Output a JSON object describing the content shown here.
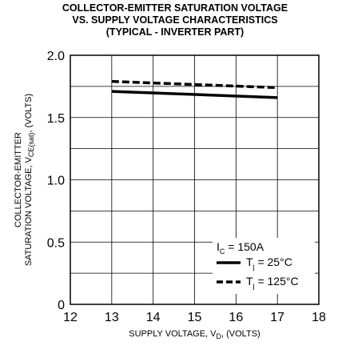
{
  "chart_data": {
    "type": "line",
    "title_lines": [
      "COLLECTOR-EMITTER SATURATION VOLTAGE",
      "VS. SUPPLY VOLTAGE CHARACTERISTICS",
      "(TYPICAL - INVERTER PART)"
    ],
    "xlabel": {
      "main": "SUPPLY VOLTAGE, V",
      "sub": "D",
      "tail": ", (VOLTS)"
    },
    "ylabel": {
      "line1": "COLLECTOR-EMITTER",
      "line2_main": "SATURATION VOLTAGE, V",
      "line2_sub": "CE(sat)",
      "line2_tail": ", (VOLTS)"
    },
    "xlim": [
      12,
      18
    ],
    "ylim": [
      0,
      2.0
    ],
    "x_ticks": [
      "12",
      "13",
      "14",
      "15",
      "16",
      "17",
      "18"
    ],
    "y_ticks": [
      "0",
      "0.5",
      "1.0",
      "1.5",
      "2.0"
    ],
    "grid": true,
    "legend_header": {
      "main": "I",
      "sub": "C",
      "tail": " = 150A"
    },
    "series": [
      {
        "name_main": "T",
        "name_sub": "j",
        "name_tail": " = 25°C",
        "style": "solid",
        "x": [
          13,
          17
        ],
        "y": [
          1.71,
          1.66
        ]
      },
      {
        "name_main": "T",
        "name_sub": "j",
        "name_tail": " = 125°C",
        "style": "dashed",
        "x": [
          13,
          17
        ],
        "y": [
          1.79,
          1.74
        ]
      }
    ]
  }
}
